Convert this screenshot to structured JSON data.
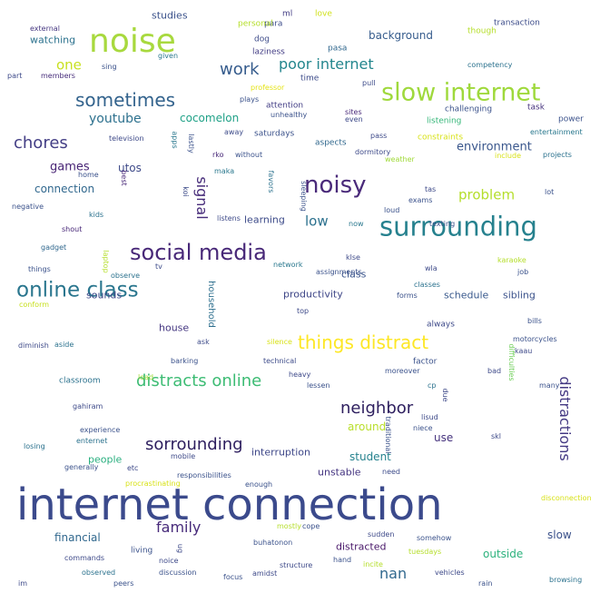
{
  "words": [
    {
      "text": "internet connection",
      "color": "#3b4a8c",
      "orient": "h"
    },
    {
      "text": "noise",
      "color": "#a8d93e",
      "orient": "h"
    },
    {
      "text": "slow internet",
      "color": "#9fd93c",
      "orient": "h"
    },
    {
      "text": "surrounding",
      "color": "#26818e",
      "orient": "h"
    },
    {
      "text": "social media",
      "color": "#482878",
      "orient": "h"
    },
    {
      "text": "noisy",
      "color": "#4a2a7a",
      "orient": "h"
    },
    {
      "text": "online class",
      "color": "#2a768e",
      "orient": "h"
    },
    {
      "text": "things distract",
      "color": "#fde725",
      "orient": "h"
    },
    {
      "text": "sometimes",
      "color": "#33638d",
      "orient": "h"
    },
    {
      "text": "distracts online",
      "color": "#3dbc74",
      "orient": "h"
    },
    {
      "text": "sorrounding",
      "color": "#2d1e5e",
      "orient": "h"
    },
    {
      "text": "neighbor",
      "color": "#2d1e5e",
      "orient": "h"
    },
    {
      "text": "family",
      "color": "#472a7a",
      "orient": "h"
    },
    {
      "text": "distractions",
      "color": "#443983",
      "orient": "v"
    },
    {
      "text": "chores",
      "color": "#433e85",
      "orient": "h"
    },
    {
      "text": "work",
      "color": "#365c8d",
      "orient": "h"
    },
    {
      "text": "poor internet",
      "color": "#23868d",
      "orient": "h"
    },
    {
      "text": "signal",
      "color": "#472c7a",
      "orient": "v"
    },
    {
      "text": "low",
      "color": "#2c718e",
      "orient": "h"
    },
    {
      "text": "problem",
      "color": "#b5de2b",
      "orient": "h"
    },
    {
      "text": "nan",
      "color": "#31688e",
      "orient": "h"
    },
    {
      "text": "one",
      "color": "#c8e020",
      "orient": "h"
    },
    {
      "text": "youtube",
      "color": "#2d718e",
      "orient": "h"
    },
    {
      "text": "environment",
      "color": "#39568c",
      "orient": "h"
    },
    {
      "text": "games",
      "color": "#482475",
      "orient": "h"
    },
    {
      "text": "utos",
      "color": "#3e4a89",
      "orient": "h"
    },
    {
      "text": "connection",
      "color": "#31688e",
      "orient": "h"
    },
    {
      "text": "cocomelon",
      "color": "#1fa187",
      "orient": "h"
    },
    {
      "text": "background",
      "color": "#365c8d",
      "orient": "h"
    },
    {
      "text": "studies",
      "color": "#3b528b",
      "orient": "h"
    },
    {
      "text": "watching",
      "color": "#2c728e",
      "orient": "h"
    },
    {
      "text": "learning",
      "color": "#3e4c8a",
      "orient": "h"
    },
    {
      "text": "productivity",
      "color": "#3f4788",
      "orient": "h"
    },
    {
      "text": "household",
      "color": "#2e6f8e",
      "orient": "v"
    },
    {
      "text": "sounds",
      "color": "#3f4889",
      "orient": "h"
    },
    {
      "text": "house",
      "color": "#453781",
      "orient": "h"
    },
    {
      "text": "student",
      "color": "#26828e",
      "orient": "h"
    },
    {
      "text": "around",
      "color": "#b8de29",
      "orient": "h"
    },
    {
      "text": "people",
      "color": "#29af7f",
      "orient": "h"
    },
    {
      "text": "interruption",
      "color": "#3f4889",
      "orient": "h"
    },
    {
      "text": "use",
      "color": "#46337e",
      "orient": "h"
    },
    {
      "text": "unstable",
      "color": "#453581",
      "orient": "h"
    },
    {
      "text": "schedule",
      "color": "#38588c",
      "orient": "h"
    },
    {
      "text": "sibling",
      "color": "#3b528b",
      "orient": "h"
    },
    {
      "text": "financial",
      "color": "#31688e",
      "orient": "h"
    },
    {
      "text": "distracted",
      "color": "#481769",
      "orient": "h"
    },
    {
      "text": "outside",
      "color": "#2db27d",
      "orient": "h"
    },
    {
      "text": "slow",
      "color": "#3b528b",
      "orient": "h"
    },
    {
      "text": "class",
      "color": "#3a548c",
      "orient": "h"
    },
    {
      "text": "ml",
      "color": "#433d84",
      "orient": "h"
    },
    {
      "text": "love",
      "color": "#d0e11c",
      "orient": "h"
    },
    {
      "text": "para",
      "color": "#3d4d8a",
      "orient": "h"
    },
    {
      "text": "personal",
      "color": "#b5de2b",
      "orient": "h"
    },
    {
      "text": "dog",
      "color": "#3e4c8a",
      "orient": "h"
    },
    {
      "text": "laziness",
      "color": "#433d84",
      "orient": "h"
    },
    {
      "text": "pasa",
      "color": "#31688e",
      "orient": "h"
    },
    {
      "text": "though",
      "color": "#b5de2b",
      "orient": "h"
    },
    {
      "text": "transaction",
      "color": "#3d4d8a",
      "orient": "h"
    },
    {
      "text": "external",
      "color": "#453781",
      "orient": "h"
    },
    {
      "text": "sing",
      "color": "#3b528b",
      "orient": "h"
    },
    {
      "text": "given",
      "color": "#2a788e",
      "orient": "h"
    },
    {
      "text": "members",
      "color": "#472d7b",
      "orient": "h"
    },
    {
      "text": "part",
      "color": "#3e4a89",
      "orient": "h"
    },
    {
      "text": "time",
      "color": "#3e4c8a",
      "orient": "h"
    },
    {
      "text": "professor",
      "color": "#e5e419",
      "orient": "h"
    },
    {
      "text": "plays",
      "color": "#3b528b",
      "orient": "h"
    },
    {
      "text": "competency",
      "color": "#2c728e",
      "orient": "h"
    },
    {
      "text": "pull",
      "color": "#3e4c8a",
      "orient": "h"
    },
    {
      "text": "attention",
      "color": "#433e85",
      "orient": "h"
    },
    {
      "text": "unhealthy",
      "color": "#3b528b",
      "orient": "h"
    },
    {
      "text": "sites",
      "color": "#482878",
      "orient": "h"
    },
    {
      "text": "even",
      "color": "#3e4a89",
      "orient": "h"
    },
    {
      "text": "challenging",
      "color": "#3b528b",
      "orient": "h"
    },
    {
      "text": "task",
      "color": "#46337e",
      "orient": "h"
    },
    {
      "text": "listening",
      "color": "#35b779",
      "orient": "h"
    },
    {
      "text": "power",
      "color": "#3b528b",
      "orient": "h"
    },
    {
      "text": "entertainment",
      "color": "#2a788e",
      "orient": "h"
    },
    {
      "text": "television",
      "color": "#3e4a89",
      "orient": "h"
    },
    {
      "text": "apps",
      "color": "#2a788e",
      "orient": "v"
    },
    {
      "text": "lastly",
      "color": "#3b528b",
      "orient": "v"
    },
    {
      "text": "away",
      "color": "#3e4c8a",
      "orient": "h"
    },
    {
      "text": "saturdays",
      "color": "#3b528b",
      "orient": "h"
    },
    {
      "text": "aspects",
      "color": "#31688e",
      "orient": "h"
    },
    {
      "text": "pass",
      "color": "#3e4a89",
      "orient": "h"
    },
    {
      "text": "constraints",
      "color": "#d8e219",
      "orient": "h"
    },
    {
      "text": "include",
      "color": "#d8e219",
      "orient": "h"
    },
    {
      "text": "projects",
      "color": "#2c728e",
      "orient": "h"
    },
    {
      "text": "rko",
      "color": "#482878",
      "orient": "h"
    },
    {
      "text": "without",
      "color": "#3b528b",
      "orient": "h"
    },
    {
      "text": "dormitory",
      "color": "#3e4a89",
      "orient": "h"
    },
    {
      "text": "weather",
      "color": "#a0da39",
      "orient": "h"
    },
    {
      "text": "home",
      "color": "#3b528b",
      "orient": "h"
    },
    {
      "text": "best",
      "color": "#482878",
      "orient": "v"
    },
    {
      "text": "maka",
      "color": "#2a788e",
      "orient": "h"
    },
    {
      "text": "koi",
      "color": "#3e4c8a",
      "orient": "v"
    },
    {
      "text": "favors",
      "color": "#2c728e",
      "orient": "v"
    },
    {
      "text": "sleeping",
      "color": "#3b528b",
      "orient": "v"
    },
    {
      "text": "exams",
      "color": "#3b528b",
      "orient": "h"
    },
    {
      "text": "tas",
      "color": "#3e4a89",
      "orient": "h"
    },
    {
      "text": "lot",
      "color": "#3b528b",
      "orient": "h"
    },
    {
      "text": "negative",
      "color": "#3b528b",
      "orient": "h"
    },
    {
      "text": "kids",
      "color": "#2c728e",
      "orient": "h"
    },
    {
      "text": "listens",
      "color": "#3e4a89",
      "orient": "h"
    },
    {
      "text": "loud",
      "color": "#3b528b",
      "orient": "h"
    },
    {
      "text": "now",
      "color": "#2a788e",
      "orient": "h"
    },
    {
      "text": "shout",
      "color": "#482878",
      "orient": "h"
    },
    {
      "text": "texting",
      "color": "#3b528b",
      "orient": "h"
    },
    {
      "text": "gadget",
      "color": "#31688e",
      "orient": "h"
    },
    {
      "text": "laptop",
      "color": "#b5de2b",
      "orient": "v"
    },
    {
      "text": "klse",
      "color": "#3e4a89",
      "orient": "h"
    },
    {
      "text": "karaoke",
      "color": "#b5de2b",
      "orient": "h"
    },
    {
      "text": "things",
      "color": "#3b528b",
      "orient": "h"
    },
    {
      "text": "observe",
      "color": "#2c728e",
      "orient": "h"
    },
    {
      "text": "tv",
      "color": "#3e4c8a",
      "orient": "h"
    },
    {
      "text": "network",
      "color": "#2a788e",
      "orient": "h"
    },
    {
      "text": "assignments",
      "color": "#3b528b",
      "orient": "h"
    },
    {
      "text": "wla",
      "color": "#3e4a89",
      "orient": "h"
    },
    {
      "text": "job",
      "color": "#3b528b",
      "orient": "h"
    },
    {
      "text": "classes",
      "color": "#2c728e",
      "orient": "h"
    },
    {
      "text": "forms",
      "color": "#3b528b",
      "orient": "h"
    },
    {
      "text": "top",
      "color": "#3e4a89",
      "orient": "h"
    },
    {
      "text": "conform",
      "color": "#c8e020",
      "orient": "h"
    },
    {
      "text": "always",
      "color": "#3e4a89",
      "orient": "h"
    },
    {
      "text": "bills",
      "color": "#3b528b",
      "orient": "h"
    },
    {
      "text": "diminish",
      "color": "#3e4a89",
      "orient": "h"
    },
    {
      "text": "aside",
      "color": "#2c728e",
      "orient": "h"
    },
    {
      "text": "ask",
      "color": "#3e4c8a",
      "orient": "h"
    },
    {
      "text": "silence",
      "color": "#d8e219",
      "orient": "h"
    },
    {
      "text": "motorcycles",
      "color": "#3b528b",
      "orient": "h"
    },
    {
      "text": "kaau",
      "color": "#3e4a89",
      "orient": "h"
    },
    {
      "text": "barking",
      "color": "#3b528b",
      "orient": "h"
    },
    {
      "text": "technical",
      "color": "#3e4c8a",
      "orient": "h"
    },
    {
      "text": "difficulties",
      "color": "#6ece58",
      "orient": "v"
    },
    {
      "text": "factor",
      "color": "#3b528b",
      "orient": "h"
    },
    {
      "text": "classroom",
      "color": "#2c728e",
      "orient": "h"
    },
    {
      "text": "load",
      "color": "#a0da39",
      "orient": "h"
    },
    {
      "text": "heavy",
      "color": "#3e4a89",
      "orient": "h"
    },
    {
      "text": "moreover",
      "color": "#3b528b",
      "orient": "h"
    },
    {
      "text": "bad",
      "color": "#3e4a89",
      "orient": "h"
    },
    {
      "text": "many",
      "color": "#3b528b",
      "orient": "h"
    },
    {
      "text": "cp",
      "color": "#2c728e",
      "orient": "h"
    },
    {
      "text": "lessen",
      "color": "#3b528b",
      "orient": "h"
    },
    {
      "text": "due",
      "color": "#3e4a89",
      "orient": "v"
    },
    {
      "text": "gahiram",
      "color": "#3e4a89",
      "orient": "h"
    },
    {
      "text": "experience",
      "color": "#3b528b",
      "orient": "h"
    },
    {
      "text": "enternet",
      "color": "#2c728e",
      "orient": "h"
    },
    {
      "text": "lisud",
      "color": "#3e4a89",
      "orient": "h"
    },
    {
      "text": "niece",
      "color": "#3b528b",
      "orient": "h"
    },
    {
      "text": "skl",
      "color": "#3e4a89",
      "orient": "h"
    },
    {
      "text": "traditional",
      "color": "#3b528b",
      "orient": "v"
    },
    {
      "text": "losing",
      "color": "#2c728e",
      "orient": "h"
    },
    {
      "text": "mobile",
      "color": "#3e4a89",
      "orient": "h"
    },
    {
      "text": "generally",
      "color": "#3b528b",
      "orient": "h"
    },
    {
      "text": "etc",
      "color": "#3e4a89",
      "orient": "h"
    },
    {
      "text": "responsibilities",
      "color": "#3b528b",
      "orient": "h"
    },
    {
      "text": "need",
      "color": "#3e4c8a",
      "orient": "h"
    },
    {
      "text": "procrastinating",
      "color": "#d8e219",
      "orient": "h"
    },
    {
      "text": "enough",
      "color": "#3b528b",
      "orient": "h"
    },
    {
      "text": "disconnection",
      "color": "#d8e219",
      "orient": "h"
    },
    {
      "text": "mostly",
      "color": "#b5de2b",
      "orient": "h"
    },
    {
      "text": "cope",
      "color": "#3b528b",
      "orient": "h"
    },
    {
      "text": "sudden",
      "color": "#3e4a89",
      "orient": "h"
    },
    {
      "text": "somehow",
      "color": "#3b528b",
      "orient": "h"
    },
    {
      "text": "commands",
      "color": "#3e4a89",
      "orient": "h"
    },
    {
      "text": "living",
      "color": "#3b528b",
      "orient": "h"
    },
    {
      "text": "ug",
      "color": "#3e4a89",
      "orient": "v"
    },
    {
      "text": "buhatonon",
      "color": "#3b528b",
      "orient": "h"
    },
    {
      "text": "tuesdays",
      "color": "#b5de2b",
      "orient": "h"
    },
    {
      "text": "noice",
      "color": "#3e4a89",
      "orient": "h"
    },
    {
      "text": "observed",
      "color": "#2c728e",
      "orient": "h"
    },
    {
      "text": "discussion",
      "color": "#3b528b",
      "orient": "h"
    },
    {
      "text": "structure",
      "color": "#3e4a89",
      "orient": "h"
    },
    {
      "text": "hand",
      "color": "#3b528b",
      "orient": "h"
    },
    {
      "text": "incite",
      "color": "#b5de2b",
      "orient": "h"
    },
    {
      "text": "im",
      "color": "#3e4a89",
      "orient": "h"
    },
    {
      "text": "peers",
      "color": "#3b528b",
      "orient": "h"
    },
    {
      "text": "amidst",
      "color": "#3e4a89",
      "orient": "h"
    },
    {
      "text": "focus",
      "color": "#3b528b",
      "orient": "h"
    },
    {
      "text": "vehicles",
      "color": "#3e4a89",
      "orient": "h"
    },
    {
      "text": "rain",
      "color": "#3b528b",
      "orient": "h"
    },
    {
      "text": "browsing",
      "color": "#2c728e",
      "orient": "h"
    },
    {
      "text": "finish",
      "color": "#3b528b",
      "orient": "h"
    }
  ]
}
